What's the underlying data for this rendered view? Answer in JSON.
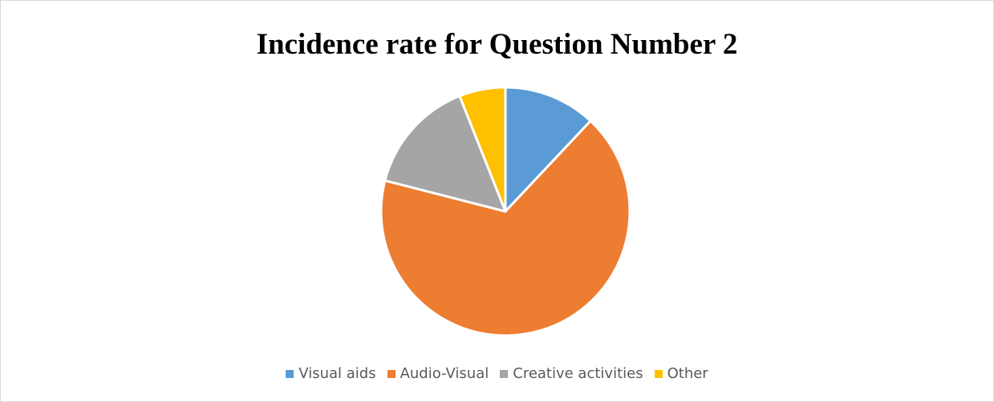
{
  "chart_data": {
    "type": "pie",
    "title": "Incidence rate for Question Number 2",
    "categories": [
      "Visual aids",
      "Audio-Visual",
      "Creative activities",
      "Other"
    ],
    "values": [
      12,
      67,
      15,
      6
    ],
    "unit": "percent (estimated)",
    "colors": [
      "#5B9BD5",
      "#ED7D31",
      "#A5A5A5",
      "#FFC000"
    ],
    "start_angle": "12 o'clock",
    "direction": "clockwise",
    "legend_position": "bottom"
  }
}
